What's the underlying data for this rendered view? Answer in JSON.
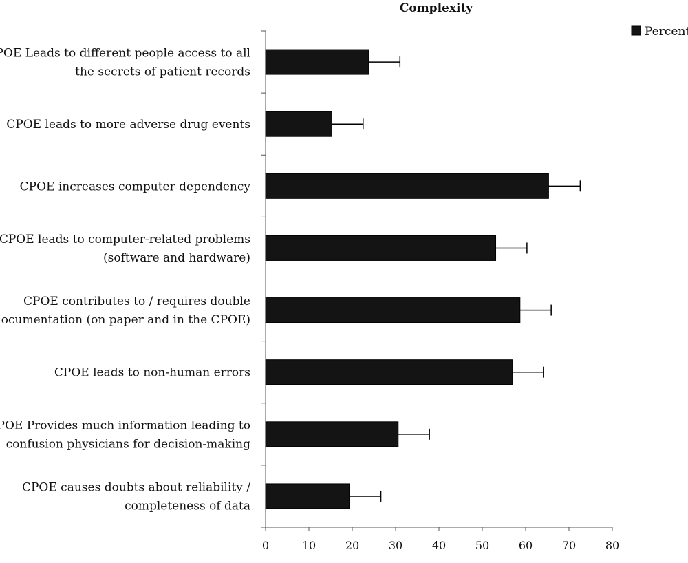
{
  "chart_data": {
    "type": "bar",
    "orientation": "horizontal",
    "title": "Complexity",
    "xlabel": "",
    "ylabel": "",
    "xlim": [
      0,
      80
    ],
    "x_ticks": [
      0,
      10,
      20,
      30,
      40,
      50,
      60,
      70,
      80
    ],
    "grid": false,
    "legend_position": "top-right",
    "error_bars": true,
    "categories": [
      [
        "CPOE Leads to different people access to all",
        "the secrets of patient records"
      ],
      [
        "CPOE leads to more adverse drug events"
      ],
      [
        "CPOE increases computer dependency"
      ],
      [
        "CPOE leads to computer-related problems",
        "(software and hardware)"
      ],
      [
        "CPOE contributes to / requires double",
        "documentation (on paper and in the CPOE)"
      ],
      [
        "CPOE leads to non-human errors"
      ],
      [
        "CPOE Provides much information leading to",
        "confusion physicians for decision-making"
      ],
      [
        "CPOE causes doubts about reliability /",
        "completeness of data"
      ]
    ],
    "series": [
      {
        "name": "Percent",
        "color": "#141414",
        "values": [
          23.8,
          15.3,
          65.3,
          53.1,
          58.7,
          56.9,
          30.6,
          19.3
        ],
        "error_plus": [
          7.2,
          7.2,
          7.3,
          7.2,
          7.2,
          7.2,
          7.2,
          7.3
        ]
      }
    ]
  }
}
